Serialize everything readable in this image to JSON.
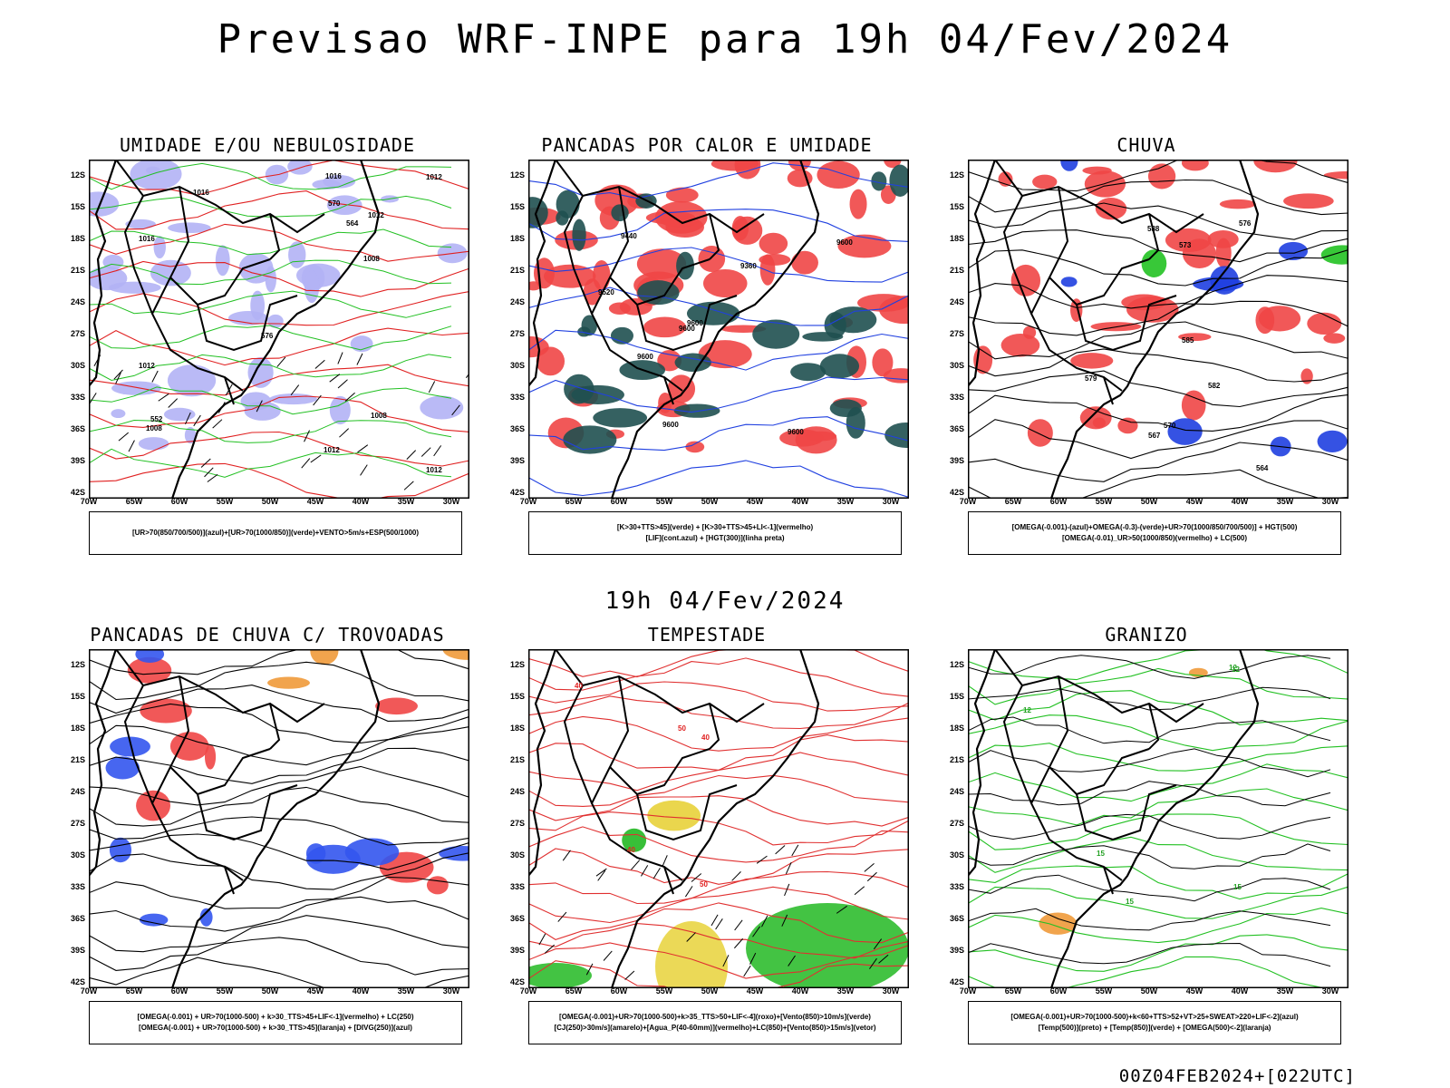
{
  "title": "Previsao WRF-INPE  para 19h 04/Fev/2024",
  "mid_title": "19h 04/Fev/2024",
  "footer": "00Z04FEB2024+[022UTC]",
  "lat_labels": [
    "12S",
    "15S",
    "18S",
    "21S",
    "24S",
    "27S",
    "30S",
    "33S",
    "36S",
    "39S",
    "42S"
  ],
  "lon_labels": [
    "70W",
    "65W",
    "60W",
    "55W",
    "50W",
    "45W",
    "40W",
    "35W",
    "30W"
  ],
  "panels": [
    {
      "title": "UMIDADE E/OU NEBULOSIDADE",
      "legend": [
        "[UR>70(850/700/500)](azul)+[UR>70(1000/850)](verde)+VENTO>5m/s+ESP(500/1000)"
      ],
      "contour_labels": [
        "1012",
        "1012",
        "1012",
        "1016",
        "1008",
        "1012",
        "1016",
        "1012",
        "1008",
        "1008",
        "576",
        "570",
        "564",
        "552",
        "1016"
      ]
    },
    {
      "title": "PANCADAS POR CALOR E UMIDADE",
      "legend": [
        "[K>30+TTS>45](verde) + [K>30+TTS>45+LI<-1](vermelho)",
        "[LIF](cont.azul) + [HGT(300)](linha preta)"
      ],
      "contour_labels": [
        "9600",
        "9600",
        "9600",
        "9600",
        "9600",
        "9600",
        "9520",
        "9440",
        "9360"
      ]
    },
    {
      "title": "CHUVA",
      "legend": [
        "[OMEGA(-0.001)-(azul)+OMEGA(-0.3)-(verde)+UR>70(1000/850/700/500)] + HGT(500)",
        "[OMEGA(-0.01)_UR>50(1000/850)(vermelho) + LC(500)"
      ],
      "contour_labels": [
        "588",
        "585",
        "582",
        "579",
        "576",
        "573",
        "570",
        "567",
        "564"
      ]
    },
    {
      "title": "PANCADAS DE CHUVA C/ TROVOADAS",
      "legend": [
        "[OMEGA(-0.001) + UR>70(1000-500) + k>30_TTS>45+LIF<-1](vermelho) + LC(250)",
        "[OMEGA(-0.001) + UR>70(1000-500) + k>30_TTS>45](laranja) + [DIVG(250)](azul)"
      ],
      "contour_labels": []
    },
    {
      "title": "TEMPESTADE",
      "legend": [
        "[OMEGA(-0.001)+UR>70(1000-500)+k>35_TTS>50+LIF<-4](roxo)+[Vento(850)>10m/s](verde)",
        "[CJ(250)>30m/s](amarelo)+[Agua_P(40-60mm)](vermelho)+LC(850)+[Vento(850)>15m/s](vetor)"
      ],
      "contour_labels": [
        "50",
        "40",
        "40",
        "50",
        "40"
      ]
    },
    {
      "title": "GRANIZO",
      "legend": [
        "[OMEGA(-0.001)+UR>70(1000-500)+k<60+TTS>52+VT>25+SWEAT>220+LIF<-2](azul)",
        "[Temp(500)](preto) + [Temp(850)](verde) + [OMEGA(500)<-2](laranja)"
      ],
      "contour_labels": [
        "15",
        "15",
        "12",
        "12",
        "15",
        "12"
      ]
    }
  ]
}
